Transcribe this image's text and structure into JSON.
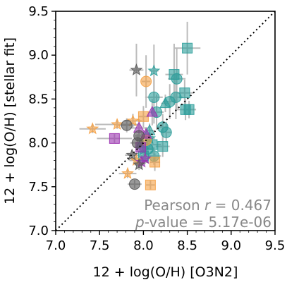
{
  "chart_data": {
    "type": "scatter",
    "xlabel": "12 + log(O/H) [O3N2]",
    "ylabel": "12 + log(O/H) [stellar fit]",
    "xlim": [
      7.0,
      9.5
    ],
    "ylim": [
      7.0,
      9.5
    ],
    "xticks": [
      "7.0",
      "7.5",
      "8.0",
      "8.5",
      "9.0",
      "9.5"
    ],
    "yticks": [
      "7.0",
      "7.5",
      "8.0",
      "8.5",
      "9.0",
      "9.5"
    ],
    "one_to_one_line": true,
    "grid": false,
    "annotation": {
      "line1_prefix": "Pearson ",
      "line1_symbol": "r",
      "line1_suffix": " = 0.467",
      "line2_symbol": "p",
      "line2_suffix": "-value = 5.17e-06"
    },
    "colors": {
      "teal": "#2a9d9a",
      "orange": "#f5a043",
      "purple": "#9b33b0",
      "gray": "#555555",
      "errorbar": "#bbbbbb",
      "annotation_text": "#888888"
    },
    "series": [
      {
        "color": "teal",
        "marker": "square",
        "points": [
          [
            8.5,
            9.08,
            0.15,
            0.3
          ],
          [
            8.35,
            8.78,
            0.1,
            0.35
          ],
          [
            8.47,
            8.57,
            0.1,
            0.15
          ],
          [
            8.48,
            8.38,
            0.12,
            0.12
          ],
          [
            8.52,
            8.38,
            0.08,
            0.1
          ],
          [
            8.1,
            7.98,
            0.1,
            0.1
          ],
          [
            8.22,
            7.96,
            0.08,
            0.12
          ],
          [
            8.0,
            7.85,
            0.06,
            0.08
          ]
        ]
      },
      {
        "color": "teal",
        "marker": "circle",
        "points": [
          [
            8.38,
            8.73,
            0.1,
            0.35
          ],
          [
            8.37,
            8.52,
            0.08,
            0.25
          ],
          [
            8.3,
            8.47,
            0.08,
            0.2
          ],
          [
            8.12,
            8.52,
            0.1,
            0.3
          ],
          [
            8.15,
            8.35,
            0.08,
            0.2
          ],
          [
            8.22,
            8.18,
            0.06,
            0.15
          ],
          [
            8.26,
            8.12,
            0.06,
            0.12
          ],
          [
            8.12,
            7.85,
            0.08,
            0.1
          ],
          [
            8.05,
            7.93,
            0.06,
            0.1
          ]
        ]
      },
      {
        "color": "teal",
        "marker": "star",
        "points": [
          [
            8.12,
            8.82,
            0.05,
            0.3
          ],
          [
            8.07,
            8.05,
            0.06,
            0.1
          ],
          [
            8.0,
            7.92,
            0.05,
            0.1
          ]
        ]
      },
      {
        "color": "teal",
        "marker": "triangle",
        "points": [
          [
            8.25,
            8.45,
            0.05,
            0.1
          ],
          [
            8.07,
            8.14,
            0.05,
            0.08
          ],
          [
            7.98,
            8.0,
            0.05,
            0.06
          ]
        ]
      },
      {
        "color": "orange",
        "marker": "circle",
        "points": [
          [
            8.03,
            8.7,
            0.05,
            0.3
          ],
          [
            8.03,
            8.03,
            0.05,
            0.08
          ]
        ]
      },
      {
        "color": "orange",
        "marker": "square",
        "points": [
          [
            8.0,
            8.3,
            0.06,
            0.12
          ],
          [
            8.13,
            7.78,
            0.06,
            0.1
          ],
          [
            8.08,
            7.52,
            0.05,
            0.05
          ]
        ]
      },
      {
        "color": "orange",
        "marker": "star",
        "points": [
          [
            7.42,
            8.16,
            0.15,
            0.05
          ],
          [
            7.7,
            8.21,
            0.25,
            0.05
          ],
          [
            7.88,
            8.25,
            0.1,
            0.08
          ],
          [
            7.82,
            7.65,
            0.1,
            0.05
          ],
          [
            7.92,
            7.8,
            0.08,
            0.06
          ]
        ]
      },
      {
        "color": "purple",
        "marker": "square",
        "points": [
          [
            7.67,
            8.05,
            0.2,
            0.05
          ],
          [
            7.97,
            7.95,
            0.08,
            0.06
          ]
        ]
      },
      {
        "color": "purple",
        "marker": "triangle",
        "points": [
          [
            7.95,
            8.17,
            0.1,
            0.1
          ],
          [
            8.1,
            8.35,
            0.05,
            0.15
          ],
          [
            8.03,
            8.1,
            0.06,
            0.08
          ]
        ]
      },
      {
        "color": "purple",
        "marker": "star",
        "points": [
          [
            7.98,
            7.78,
            0.08,
            0.08
          ],
          [
            8.02,
            7.82,
            0.05,
            0.06
          ]
        ]
      },
      {
        "color": "gray",
        "marker": "circle",
        "points": [
          [
            7.81,
            8.2,
            0.1,
            0.08
          ],
          [
            7.93,
            8.0,
            0.08,
            0.1
          ],
          [
            7.9,
            7.53,
            0.08,
            0.05
          ],
          [
            7.95,
            8.08,
            0.05,
            0.06
          ]
        ]
      },
      {
        "color": "gray",
        "marker": "star",
        "points": [
          [
            7.92,
            8.83,
            0.08,
            0.3
          ],
          [
            7.87,
            7.86,
            0.08,
            0.06
          ],
          [
            7.95,
            7.75,
            0.05,
            0.06
          ]
        ]
      }
    ]
  }
}
